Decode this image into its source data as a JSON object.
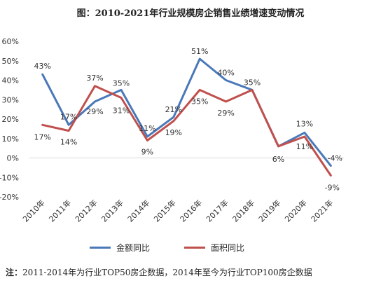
{
  "chart_data": {
    "type": "line",
    "title": "图：2010-2021年行业规模房企销售业绩增速变动情况",
    "categories": [
      "2010年",
      "2011年",
      "2012年",
      "2013年",
      "2014年",
      "2015年",
      "2016年",
      "2017年",
      "2018年",
      "2019年",
      "2020年",
      "2021年"
    ],
    "series": [
      {
        "name": "金额同比",
        "color": "#4a78b8",
        "values": [
          43,
          17,
          29,
          35,
          11,
          21,
          51,
          40,
          35,
          6,
          13,
          -4
        ],
        "labels": [
          "43%",
          "17%",
          "29%",
          "35%",
          "11%",
          "21%",
          "51%",
          "40%",
          "35%",
          "6%",
          "13%",
          "-4%"
        ]
      },
      {
        "name": "面积同比",
        "color": "#c0504d",
        "values": [
          17,
          14,
          37,
          31,
          9,
          19,
          35,
          29,
          35,
          6,
          11,
          -9
        ],
        "labels": [
          "17%",
          "14%",
          "37%",
          "31%",
          "9%",
          "19%",
          "35%",
          "29%",
          "",
          "",
          "11%",
          "-9%"
        ]
      }
    ],
    "yticks": [
      "60%",
      "50%",
      "40%",
      "30%",
      "20%",
      "10%",
      "0%",
      "-10%",
      "-20%"
    ],
    "ylim": [
      -20,
      60
    ],
    "grid": false,
    "legend_position": "bottom"
  },
  "footnote": {
    "prefix": "注：",
    "text": "2011-2014年为行业TOP50房企数据，2014年至今为行业TOP100房企数据"
  }
}
